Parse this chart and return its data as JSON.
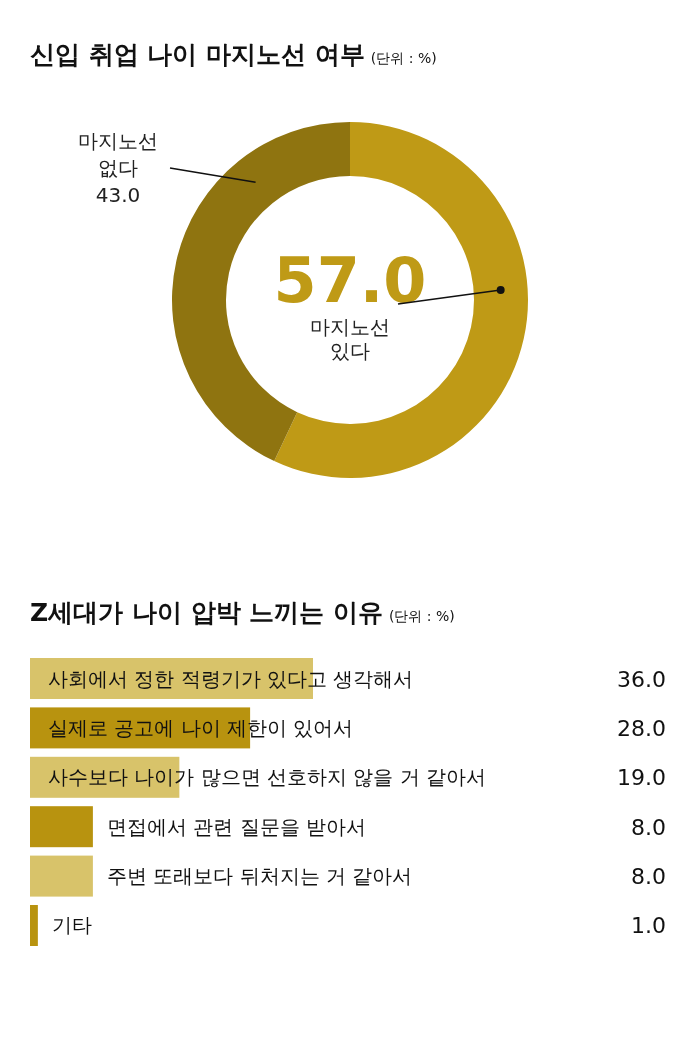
{
  "chart_data": [
    {
      "type": "donut",
      "title": "신입 취업 나이 마지노선 여부",
      "subtitle": "(단위 : %)",
      "categories": [
        "마지노선 있다",
        "마지노선 없다"
      ],
      "values": [
        57.0,
        43.0
      ],
      "colors": [
        "#bf9a16",
        "#8f7410"
      ],
      "value_labels": [
        "57.0",
        "43.0"
      ]
    },
    {
      "type": "bar",
      "orientation": "horizontal",
      "title": "Z세대가 나이 압박 느끼는 이유",
      "subtitle": "(단위 : %)",
      "categories": [
        "사회에서 정한 적령기가 있다고 생각해서",
        "실제로 공고에 나이 제한이 있어서",
        "사수보다 나이가 많으면 선호하지 않을 거 같아서",
        "면접에서 관련 질문을 받아서",
        "주변 또래보다 뒤처지는 거 같아서",
        "기타"
      ],
      "values": [
        36.0,
        28.0,
        19.0,
        8.0,
        8.0,
        1.0
      ],
      "colors": [
        "#d8c36a",
        "#b8930f",
        "#d8c36a",
        "#b8930f",
        "#d8c36a",
        "#b8930f"
      ],
      "value_labels": [
        "36.0",
        "28.0",
        "19.0",
        "8.0",
        "8.0",
        "1.0"
      ]
    }
  ]
}
